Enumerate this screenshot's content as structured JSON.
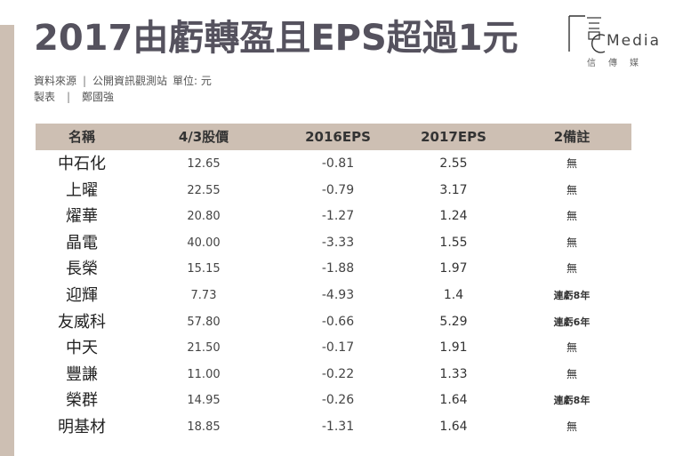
{
  "title": "2017由虧轉盈且EPS超過1元",
  "logo": {
    "text": "Media",
    "sub": "信傳媒"
  },
  "meta": {
    "source_label": "資料來源",
    "source_value": "公開資訊觀測站",
    "unit": "單位: 元",
    "maker_label": "製表",
    "maker_value": "鄭國強"
  },
  "table": {
    "headers": {
      "name": "名稱",
      "price": "4/3股價",
      "eps2016": "2016EPS",
      "eps2017": "2017EPS",
      "note": "2備註"
    },
    "rows": [
      {
        "name": "中石化",
        "price": "12.65",
        "eps2016": "-0.81",
        "eps2017": "2.55",
        "note": "無"
      },
      {
        "name": "上曜",
        "price": "22.55",
        "eps2016": "-0.79",
        "eps2017": "3.17",
        "note": "無"
      },
      {
        "name": "燿華",
        "price": "20.80",
        "eps2016": "-1.27",
        "eps2017": "1.24",
        "note": "無"
      },
      {
        "name": "晶電",
        "price": "40.00",
        "eps2016": "-3.33",
        "eps2017": "1.55",
        "note": "無"
      },
      {
        "name": "長榮",
        "price": "15.15",
        "eps2016": "-1.88",
        "eps2017": "1.97",
        "note": "無"
      },
      {
        "name": "迎輝",
        "price": "7.73",
        "eps2016": "-4.93",
        "eps2017": "1.4",
        "note": "連虧8年"
      },
      {
        "name": "友威科",
        "price": "57.80",
        "eps2016": "-0.66",
        "eps2017": "5.29",
        "note": "連虧6年"
      },
      {
        "name": "中天",
        "price": "21.50",
        "eps2016": "-0.17",
        "eps2017": "1.91",
        "note": "無"
      },
      {
        "name": "豐謙",
        "price": "11.00",
        "eps2016": "-0.22",
        "eps2017": "1.33",
        "note": "無"
      },
      {
        "name": "榮群",
        "price": "14.95",
        "eps2016": "-0.26",
        "eps2017": "1.64",
        "note": "連虧8年"
      },
      {
        "name": "明基材",
        "price": "18.85",
        "eps2016": "-1.31",
        "eps2017": "1.64",
        "note": "無"
      }
    ]
  }
}
